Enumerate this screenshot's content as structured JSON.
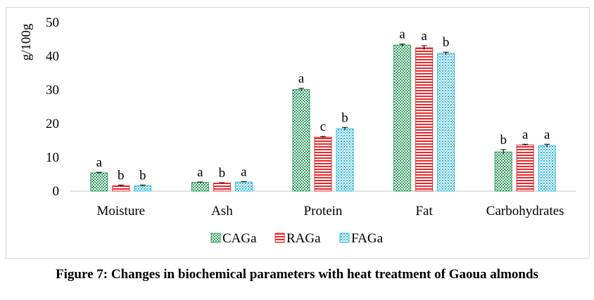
{
  "caption": "Figure 7: Changes in biochemical parameters with heat treatment of Gaoua almonds",
  "chart_data": {
    "type": "bar",
    "title": "",
    "xlabel": "",
    "ylabel": "g/100g",
    "ylim": [
      0,
      50
    ],
    "yticks": [
      0,
      10,
      20,
      30,
      40,
      50
    ],
    "grid": false,
    "legend_position": "bottom",
    "categories": [
      "Moisture",
      "Ash",
      "Protein",
      "Fat",
      "Carbohydrates"
    ],
    "series": [
      {
        "name": "CAGa",
        "color": "#2e9e5b",
        "pattern": "checker",
        "values": [
          5.4,
          2.6,
          30.1,
          43.3,
          11.6
        ],
        "errors": [
          0.2,
          0.1,
          0.4,
          0.3,
          0.7
        ],
        "letters": [
          "a",
          "a",
          "a",
          "a",
          "b"
        ]
      },
      {
        "name": "RAGa",
        "color": "#e8282c",
        "pattern": "hstripes",
        "values": [
          1.6,
          2.4,
          16.0,
          42.5,
          13.7
        ],
        "errors": [
          0.2,
          0.1,
          0.2,
          0.6,
          0.2
        ],
        "letters": [
          "b",
          "b",
          "c",
          "a",
          "a"
        ]
      },
      {
        "name": "FAGa",
        "color": "#35b8de",
        "pattern": "dots",
        "values": [
          1.6,
          2.7,
          18.5,
          40.8,
          13.5
        ],
        "errors": [
          0.2,
          0.1,
          0.4,
          0.4,
          0.4
        ],
        "letters": [
          "b",
          "a",
          "b",
          "b",
          "a"
        ]
      }
    ]
  }
}
